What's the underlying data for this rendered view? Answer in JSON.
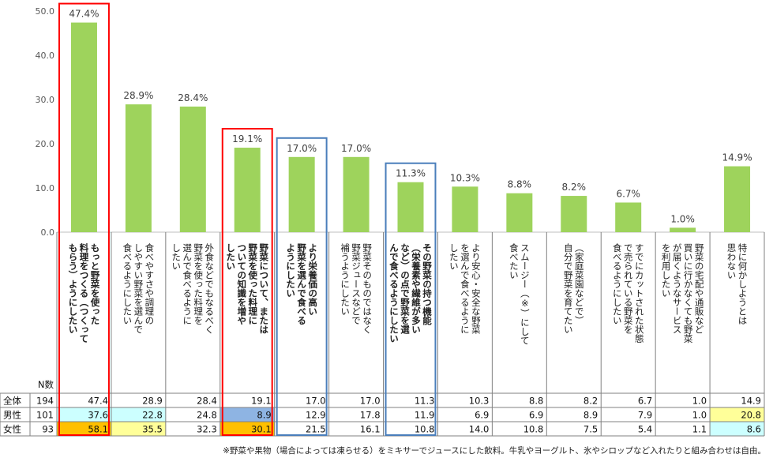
{
  "chart_data": {
    "type": "bar",
    "ylim": [
      0,
      50
    ],
    "yticks": [
      "0.0",
      "10.0",
      "20.0",
      "30.0",
      "40.0",
      "50.0"
    ],
    "categories": [
      {
        "lines": [
          "もっと野菜を使った",
          "料理をつくる（つくって",
          "もらう）ようにしたい"
        ],
        "bold": true
      },
      {
        "lines": [
          "食べやすさや調理の",
          "しやすい野菜を選んで",
          "食べるようにしたい"
        ],
        "bold": false
      },
      {
        "lines": [
          "外食などでもなるべく",
          "野菜を使った料理を",
          "選んで食べるように",
          "したい"
        ],
        "bold": false
      },
      {
        "lines": [
          "野菜について、または",
          "野菜を使った料理に",
          "ついての知識を増や",
          "したい"
        ],
        "bold": true
      },
      {
        "lines": [
          "より栄養価の高い",
          "野菜を選んで食べる",
          "ようにしたい"
        ],
        "bold": true
      },
      {
        "lines": [
          "野菜そのものではなく",
          "野菜ジュースなどで",
          "補うようにしたい"
        ],
        "bold": false
      },
      {
        "lines": [
          "その野菜の持つ機能",
          "（栄養素や繊維が多い",
          "など）の点で野菜を選",
          "んで食べるようにしたい"
        ],
        "bold": true
      },
      {
        "lines": [
          "より安心・安全な野菜",
          "を選んで食べるように",
          "したい"
        ],
        "bold": false
      },
      {
        "lines": [
          "スムージー（※）にして",
          "食べたい"
        ],
        "bold": false
      },
      {
        "lines": [
          "（家庭菜園などで）",
          "自分で野菜を育てたい"
        ],
        "bold": false
      },
      {
        "lines": [
          "すでにカットされた状態",
          "で売られている野菜を",
          "食べるようにしたい"
        ],
        "bold": false
      },
      {
        "lines": [
          "野菜の宅配や通販など",
          "買いに行かなくても野菜",
          "が届くようなサービス",
          "を利用したい"
        ],
        "bold": false
      },
      {
        "lines": [
          "特に何かしようとは",
          "思わない"
        ],
        "bold": false
      }
    ],
    "values": [
      47.4,
      28.9,
      28.4,
      19.1,
      17.0,
      17.0,
      11.3,
      10.3,
      8.8,
      8.2,
      6.7,
      1.0,
      14.9
    ],
    "value_labels": [
      "47.4%",
      "28.9%",
      "28.4%",
      "19.1%",
      "17.0%",
      "17.0%",
      "11.3%",
      "10.3%",
      "8.8%",
      "8.2%",
      "6.7%",
      "1.0%",
      "14.9%"
    ],
    "bar_color": "#9ed35c",
    "highlight_red": [
      0,
      3
    ],
    "highlight_blue": [
      4,
      6
    ],
    "table": {
      "n_header": "N数",
      "rows": [
        {
          "label": "全体",
          "n": "194",
          "values": [
            "47.4",
            "28.9",
            "28.4",
            "19.1",
            "17.0",
            "17.0",
            "11.3",
            "10.3",
            "8.8",
            "8.2",
            "6.7",
            "1.0",
            "14.9"
          ],
          "fills": [
            "",
            "",
            "",
            "",
            "",
            "",
            "",
            "",
            "",
            "",
            "",
            "",
            ""
          ]
        },
        {
          "label": "男性",
          "n": "101",
          "values": [
            "37.6",
            "22.8",
            "24.8",
            "8.9",
            "12.9",
            "17.8",
            "11.9",
            "6.9",
            "6.9",
            "8.9",
            "7.9",
            "1.0",
            "20.8"
          ],
          "fills": [
            "#ccffff",
            "#ccffff",
            "",
            "#8eb4e3",
            "",
            "",
            "",
            "",
            "",
            "",
            "",
            "",
            "#ffff99"
          ]
        },
        {
          "label": "女性",
          "n": "93",
          "values": [
            "58.1",
            "35.5",
            "32.3",
            "30.1",
            "21.5",
            "16.1",
            "10.8",
            "14.0",
            "10.8",
            "7.5",
            "5.4",
            "1.1",
            "8.6"
          ],
          "fills": [
            "#ffc000",
            "#ffff99",
            "",
            "#ffc000",
            "",
            "",
            "",
            "",
            "",
            "",
            "",
            "",
            "#ccffff"
          ]
        }
      ]
    }
  },
  "footnote": "※野菜や果物（場合によっては凍らせる）をミキサーでジュースにした飲料。牛乳やヨーグルト、氷やシロップなど入れたりと組み合わせは自由。"
}
